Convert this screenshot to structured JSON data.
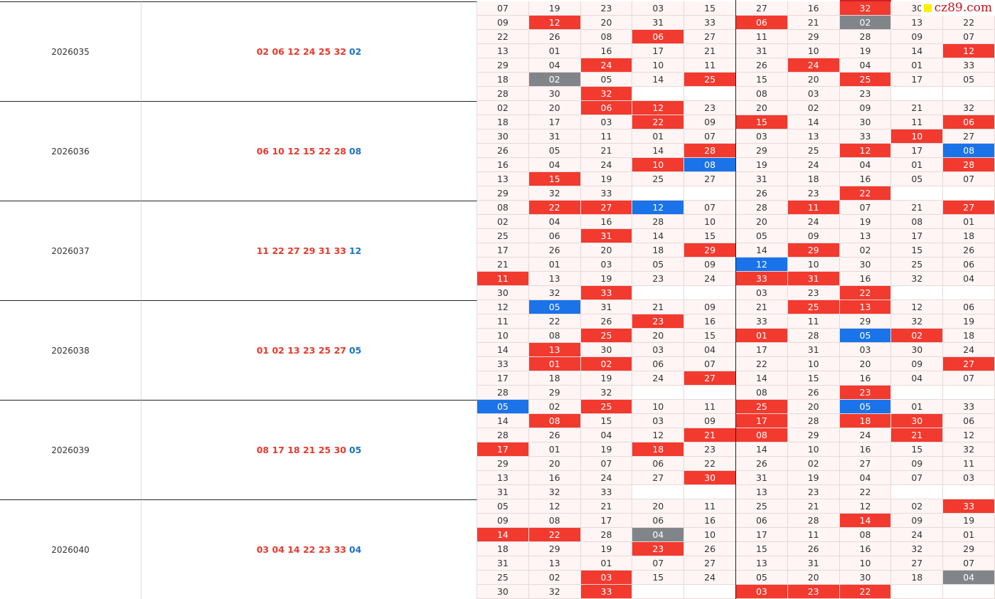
{
  "watermark": "cz89.com",
  "colors": {
    "r": "#f23a2f",
    "b": "#1a73e8",
    "g": "#818589"
  },
  "blocks": [
    {
      "issue": "2026035",
      "red": "02 06 12 24 25 32",
      "blue": "02",
      "rows": [
        [
          "07",
          "19",
          "23",
          "03",
          "15",
          "27",
          "16",
          {
            "text": "32",
            "hl": "r"
          },
          "30",
          null
        ],
        [
          "09",
          {
            "text": "12",
            "hl": "r"
          },
          "20",
          "31",
          "33",
          {
            "text": "06",
            "hl": "r"
          },
          "21",
          {
            "text": "02",
            "hl": "g"
          },
          "13",
          "22"
        ],
        [
          "22",
          "26",
          "08",
          {
            "text": "06",
            "hl": "r"
          },
          "27",
          "11",
          "29",
          "28",
          "09",
          "07"
        ],
        [
          "13",
          "01",
          "16",
          "17",
          "21",
          "31",
          "10",
          "19",
          "14",
          {
            "text": "12",
            "hl": "r"
          }
        ],
        [
          "29",
          "04",
          {
            "text": "24",
            "hl": "r"
          },
          "10",
          "11",
          "26",
          {
            "text": "24",
            "hl": "r"
          },
          "04",
          "01",
          "33"
        ],
        [
          "18",
          {
            "text": "02",
            "hl": "g"
          },
          "05",
          "14",
          {
            "text": "25",
            "hl": "r"
          },
          "15",
          "20",
          {
            "text": "25",
            "hl": "r"
          },
          "17",
          "05"
        ],
        [
          "28",
          "30",
          {
            "text": "32",
            "hl": "r"
          },
          null,
          null,
          "08",
          "03",
          "23",
          null,
          null
        ]
      ]
    },
    {
      "issue": "2026036",
      "red": "06 10 12 15 22 28",
      "blue": "08",
      "rows": [
        [
          "02",
          "20",
          {
            "text": "06",
            "hl": "r"
          },
          {
            "text": "12",
            "hl": "r"
          },
          "23",
          "20",
          "02",
          "09",
          "21",
          "32"
        ],
        [
          "18",
          "17",
          "03",
          {
            "text": "22",
            "hl": "r"
          },
          "09",
          {
            "text": "15",
            "hl": "r"
          },
          "14",
          "30",
          "11",
          {
            "text": "06",
            "hl": "r"
          }
        ],
        [
          "30",
          "31",
          "11",
          "01",
          "07",
          "03",
          "13",
          "33",
          {
            "text": "10",
            "hl": "r"
          },
          "27"
        ],
        [
          "26",
          "05",
          "21",
          "14",
          {
            "text": "28",
            "hl": "r"
          },
          "29",
          "25",
          {
            "text": "12",
            "hl": "r"
          },
          "17",
          {
            "text": "08",
            "hl": "b"
          }
        ],
        [
          "16",
          "04",
          "24",
          {
            "text": "10",
            "hl": "r"
          },
          {
            "text": "08",
            "hl": "b"
          },
          "19",
          "24",
          "04",
          "01",
          {
            "text": "28",
            "hl": "r"
          }
        ],
        [
          "13",
          {
            "text": "15",
            "hl": "r"
          },
          "19",
          "25",
          "27",
          "31",
          "18",
          "16",
          "05",
          "07"
        ],
        [
          "29",
          "32",
          "33",
          null,
          null,
          "26",
          "23",
          {
            "text": "22",
            "hl": "r"
          },
          null,
          null
        ]
      ]
    },
    {
      "issue": "2026037",
      "red": "11 22 27 29 31 33",
      "blue": "12",
      "rows": [
        [
          "08",
          {
            "text": "22",
            "hl": "r"
          },
          {
            "text": "27",
            "hl": "r"
          },
          {
            "text": "12",
            "hl": "b"
          },
          "07",
          "28",
          {
            "text": "11",
            "hl": "r"
          },
          "07",
          "21",
          {
            "text": "27",
            "hl": "r"
          }
        ],
        [
          "02",
          "04",
          "16",
          "28",
          "10",
          "20",
          "24",
          "19",
          "08",
          "01"
        ],
        [
          "25",
          "06",
          {
            "text": "31",
            "hl": "r"
          },
          "14",
          "15",
          "05",
          "09",
          "13",
          "17",
          "18"
        ],
        [
          "17",
          "26",
          "20",
          "18",
          {
            "text": "29",
            "hl": "r"
          },
          "14",
          {
            "text": "29",
            "hl": "r"
          },
          "02",
          "15",
          "26"
        ],
        [
          "21",
          "01",
          "03",
          "05",
          "09",
          {
            "text": "12",
            "hl": "b"
          },
          "10",
          "30",
          "25",
          "06"
        ],
        [
          {
            "text": "11",
            "hl": "r"
          },
          "13",
          "19",
          "23",
          "24",
          {
            "text": "33",
            "hl": "r"
          },
          {
            "text": "31",
            "hl": "r"
          },
          "16",
          "32",
          "04"
        ],
        [
          "30",
          "32",
          {
            "text": "33",
            "hl": "r"
          },
          null,
          null,
          "03",
          "23",
          {
            "text": "22",
            "hl": "r"
          },
          null,
          null
        ]
      ]
    },
    {
      "issue": "2026038",
      "red": "01 02 13 23 25 27",
      "blue": "05",
      "rows": [
        [
          "12",
          {
            "text": "05",
            "hl": "b"
          },
          "31",
          "21",
          "09",
          "21",
          {
            "text": "25",
            "hl": "r"
          },
          {
            "text": "13",
            "hl": "r"
          },
          "12",
          "06"
        ],
        [
          "11",
          "22",
          "26",
          {
            "text": "23",
            "hl": "r"
          },
          "16",
          "33",
          "11",
          "29",
          "32",
          "19"
        ],
        [
          "10",
          "08",
          {
            "text": "25",
            "hl": "r"
          },
          "20",
          "15",
          {
            "text": "01",
            "hl": "r"
          },
          "28",
          {
            "text": "05",
            "hl": "b"
          },
          {
            "text": "02",
            "hl": "r"
          },
          "18"
        ],
        [
          "14",
          {
            "text": "13",
            "hl": "r"
          },
          "30",
          "03",
          "04",
          "17",
          "31",
          "03",
          "30",
          "24"
        ],
        [
          "33",
          {
            "text": "01",
            "hl": "r"
          },
          {
            "text": "02",
            "hl": "r"
          },
          "06",
          "07",
          "22",
          "10",
          "20",
          "09",
          {
            "text": "27",
            "hl": "r"
          }
        ],
        [
          "17",
          "18",
          "19",
          "24",
          {
            "text": "27",
            "hl": "r"
          },
          "14",
          "15",
          "16",
          "04",
          "07"
        ],
        [
          "28",
          "29",
          "32",
          null,
          null,
          "08",
          "26",
          {
            "text": "23",
            "hl": "r"
          },
          null,
          null
        ]
      ]
    },
    {
      "issue": "2026039",
      "red": "08 17 18 21 25 30",
      "blue": "05",
      "rows": [
        [
          {
            "text": "05",
            "hl": "b"
          },
          "02",
          {
            "text": "25",
            "hl": "r"
          },
          "10",
          "11",
          {
            "text": "25",
            "hl": "r"
          },
          "20",
          {
            "text": "05",
            "hl": "b"
          },
          "01",
          "33"
        ],
        [
          "14",
          {
            "text": "08",
            "hl": "r"
          },
          "15",
          "03",
          "09",
          {
            "text": "17",
            "hl": "r"
          },
          "28",
          {
            "text": "18",
            "hl": "r"
          },
          {
            "text": "30",
            "hl": "r"
          },
          "06"
        ],
        [
          "28",
          "26",
          "04",
          "12",
          {
            "text": "21",
            "hl": "r"
          },
          {
            "text": "08",
            "hl": "r"
          },
          "29",
          "24",
          {
            "text": "21",
            "hl": "r"
          },
          "12"
        ],
        [
          {
            "text": "17",
            "hl": "r"
          },
          "01",
          "19",
          {
            "text": "18",
            "hl": "r"
          },
          "23",
          "14",
          "10",
          "16",
          "15",
          "32"
        ],
        [
          "29",
          "20",
          "07",
          "06",
          "22",
          "26",
          "02",
          "27",
          "09",
          "11"
        ],
        [
          "13",
          "16",
          "24",
          "27",
          {
            "text": "30",
            "hl": "r"
          },
          "31",
          "19",
          "04",
          "07",
          "03"
        ],
        [
          "31",
          "32",
          "33",
          null,
          null,
          "13",
          "23",
          "22",
          null,
          null
        ]
      ]
    },
    {
      "issue": "2026040",
      "red": "03 04 14 22 23 33",
      "blue": "04",
      "rows": [
        [
          "05",
          "12",
          "21",
          "20",
          "11",
          "25",
          "21",
          "12",
          "02",
          {
            "text": "33",
            "hl": "r"
          }
        ],
        [
          "09",
          "08",
          "17",
          "06",
          "16",
          "06",
          "28",
          {
            "text": "14",
            "hl": "r"
          },
          "09",
          "19"
        ],
        [
          {
            "text": "14",
            "hl": "r"
          },
          {
            "text": "22",
            "hl": "r"
          },
          "28",
          {
            "text": "04",
            "hl": "g"
          },
          "10",
          "17",
          "11",
          "08",
          "24",
          "01"
        ],
        [
          "18",
          "29",
          "19",
          {
            "text": "23",
            "hl": "r"
          },
          "26",
          "15",
          "26",
          "16",
          "32",
          "29"
        ],
        [
          "31",
          "13",
          "01",
          "07",
          "27",
          "13",
          "31",
          "10",
          "27",
          "07"
        ],
        [
          "25",
          "02",
          {
            "text": "03",
            "hl": "r"
          },
          "15",
          "24",
          "05",
          "20",
          "30",
          "18",
          {
            "text": "04",
            "hl": "g"
          }
        ],
        [
          "30",
          "32",
          {
            "text": "33",
            "hl": "r"
          },
          null,
          null,
          {
            "text": "03",
            "hl": "r"
          },
          {
            "text": "23",
            "hl": "r"
          },
          {
            "text": "22",
            "hl": "r"
          },
          null,
          null
        ]
      ]
    }
  ]
}
